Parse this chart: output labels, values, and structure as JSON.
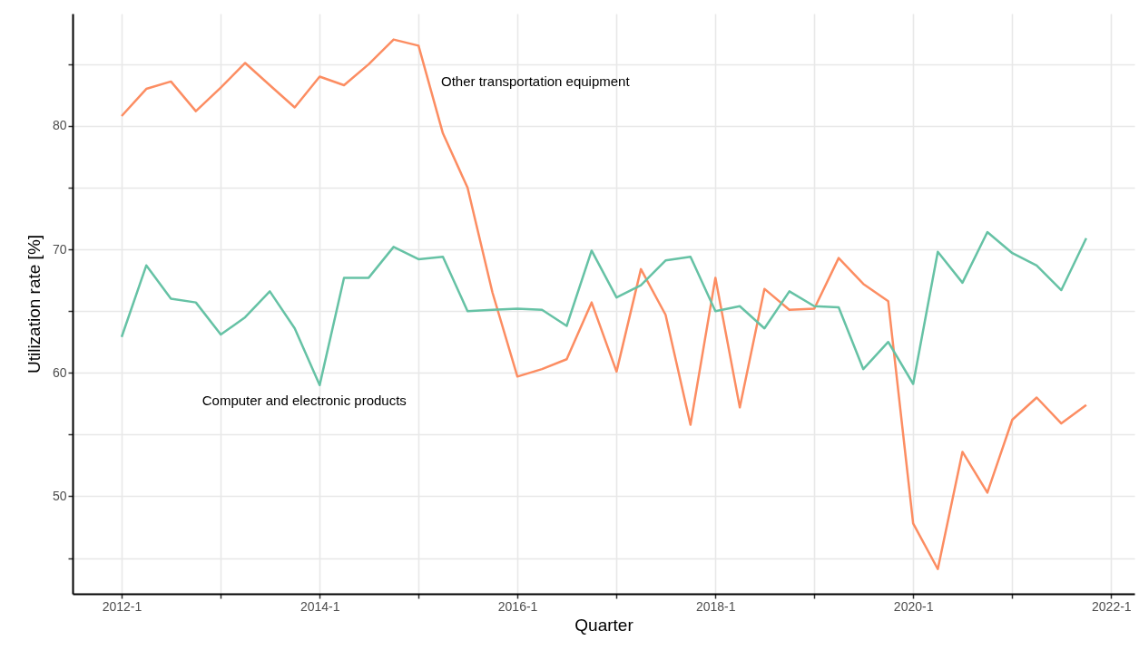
{
  "chart_data": {
    "type": "line",
    "xlabel": "Quarter",
    "ylabel": "Utilization rate [%]",
    "x": [
      "2012-01",
      "2012-04",
      "2012-07",
      "2012-10",
      "2013-01",
      "2013-04",
      "2013-07",
      "2013-10",
      "2014-01",
      "2014-04",
      "2014-07",
      "2014-10",
      "2015-01",
      "2015-04",
      "2015-07",
      "2015-10",
      "2016-01",
      "2016-04",
      "2016-07",
      "2016-10",
      "2017-01",
      "2017-04",
      "2017-07",
      "2017-10",
      "2018-01",
      "2018-04",
      "2018-07",
      "2018-10",
      "2019-01",
      "2019-04",
      "2019-07",
      "2019-10",
      "2020-01",
      "2020-04",
      "2020-07",
      "2020-10",
      "2021-01",
      "2021-04",
      "2021-07",
      "2021-10"
    ],
    "series": [
      {
        "color": "#fc8d62",
        "values": [
          80.8,
          83.0,
          83.6,
          81.2,
          83.1,
          85.1,
          83.3,
          81.5,
          84.0,
          83.3,
          85.0,
          87.0,
          86.5,
          79.4,
          75.0,
          66.5,
          59.7,
          60.3,
          61.1,
          65.7,
          60.1,
          68.4,
          64.7,
          55.8,
          67.7,
          57.2,
          66.8,
          65.1,
          65.2,
          69.3,
          67.2,
          65.8,
          47.8,
          44.1,
          53.6,
          50.3,
          56.2,
          58.0,
          55.9,
          57.4
        ]
      },
      {
        "color": "#66c2a5",
        "values": [
          62.9,
          68.7,
          66.0,
          65.7,
          63.1,
          64.5,
          66.6,
          63.6,
          59.0,
          67.7,
          67.7,
          70.2,
          69.2,
          69.4,
          65.0,
          65.1,
          65.2,
          65.1,
          63.8,
          69.9,
          66.1,
          67.1,
          69.1,
          69.4,
          65.0,
          65.4,
          63.6,
          66.6,
          65.4,
          65.3,
          60.3,
          62.5,
          59.1,
          69.8,
          67.3,
          71.4,
          69.7,
          68.7,
          66.7,
          70.9
        ]
      }
    ],
    "annotations": [
      "Other transportation equipment",
      "Computer and electronic products"
    ],
    "xlim": [
      "2011-07-04",
      "2022-03-28"
    ],
    "xticks": [
      {
        "value": "2012-01",
        "label": "2012-1"
      },
      {
        "value": "2013-01",
        "label": null
      },
      {
        "value": "2014-01",
        "label": "2014-1"
      },
      {
        "value": "2015-01",
        "label": null
      },
      {
        "value": "2016-01",
        "label": "2016-1"
      },
      {
        "value": "2017-01",
        "label": null
      },
      {
        "value": "2018-01",
        "label": "2018-1"
      },
      {
        "value": "2019-01",
        "label": null
      },
      {
        "value": "2020-01",
        "label": "2020-1"
      },
      {
        "value": "2021-01",
        "label": null
      },
      {
        "value": "2022-01",
        "label": "2022-1"
      }
    ],
    "ylim": [
      42.1,
      89.1
    ],
    "yticks": [
      {
        "value": 45,
        "label": null
      },
      50,
      {
        "value": 55,
        "label": null
      },
      60,
      {
        "value": 65,
        "label": null
      },
      70,
      {
        "value": 75,
        "label": null
      },
      80,
      {
        "value": 85,
        "label": null
      }
    ],
    "grid": true,
    "marker": "none",
    "line_style": "solid"
  }
}
